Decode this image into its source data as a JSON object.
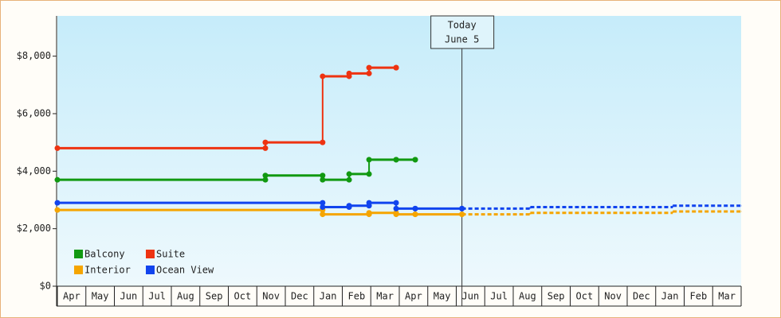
{
  "chart_data": {
    "type": "step-line",
    "categories": [
      "Apr",
      "May",
      "Jun",
      "Jul",
      "Aug",
      "Sep",
      "Oct",
      "Nov",
      "Dec",
      "Jan",
      "Feb",
      "Mar",
      "Apr",
      "May",
      "Jun",
      "Jul",
      "Aug",
      "Sep",
      "Oct",
      "Nov",
      "Dec",
      "Jan",
      "Feb",
      "Mar"
    ],
    "xlim": [
      0,
      24
    ],
    "ylim": [
      0,
      9400
    ],
    "yticks": [
      {
        "value": 0,
        "label": "$0"
      },
      {
        "value": 2000,
        "label": "$2,000"
      },
      {
        "value": 4000,
        "label": "$4,000"
      },
      {
        "value": 6000,
        "label": "$6,000"
      },
      {
        "value": 8000,
        "label": "$8,000"
      }
    ],
    "legend": "lower left",
    "annotation": {
      "x": 14.2,
      "lines": [
        "Today",
        "June 5"
      ]
    },
    "series": [
      {
        "name": "Balcony",
        "color": "#119911",
        "x": [
          0,
          7.3,
          9.31,
          10.24,
          10.94,
          11.89,
          12.56
        ],
        "values": [
          3700,
          3850,
          3700,
          3900,
          4400,
          4400,
          4400
        ]
      },
      {
        "name": "Suite",
        "color": "#ee3311",
        "x": [
          0,
          7.3,
          9.31,
          10.24,
          10.94,
          11.89
        ],
        "values": [
          4800,
          5000,
          7300,
          7400,
          7600,
          7600
        ]
      },
      {
        "name": "Interior",
        "color": "#f5a500",
        "x": [
          0,
          9.31,
          10.94,
          11.89,
          12.56,
          14.2
        ],
        "values": [
          2650,
          2500,
          2550,
          2500,
          2500,
          2500
        ],
        "forecast": {
          "x": [
            14.2,
            16.6,
            21.6,
            24
          ],
          "values": [
            2500,
            2550,
            2600,
            2600
          ]
        }
      },
      {
        "name": "Ocean View",
        "color": "#1144ee",
        "x": [
          0,
          9.31,
          10.24,
          10.94,
          11.89,
          12.56,
          14.2
        ],
        "values": [
          2900,
          2750,
          2800,
          2900,
          2700,
          2700,
          2700
        ],
        "forecast": {
          "x": [
            14.2,
            16.6,
            21.6,
            24
          ],
          "values": [
            2700,
            2750,
            2800,
            2800
          ]
        }
      }
    ]
  }
}
